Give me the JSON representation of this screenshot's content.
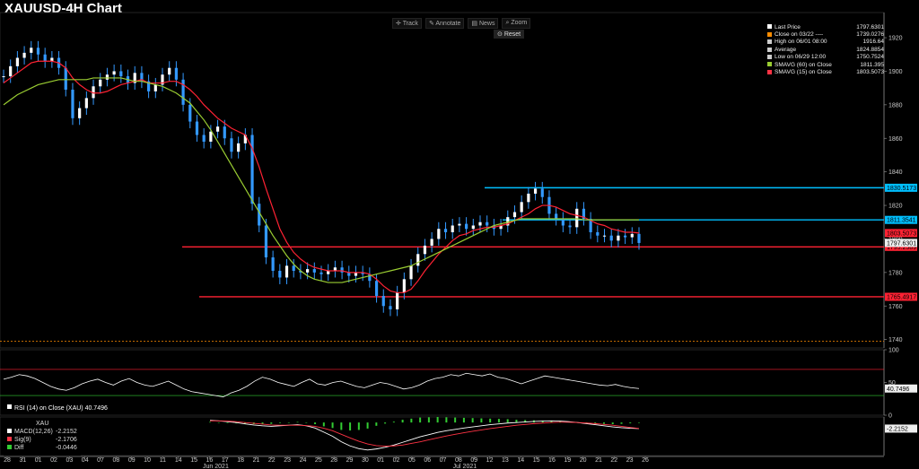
{
  "title": "XAUUSD-4H Chart",
  "toolbar": {
    "track": "Track",
    "annotate": "Annotate",
    "news": "News",
    "zoom": "Zoom",
    "reset": "Reset"
  },
  "legend": [
    {
      "label": "Last Price",
      "value": "1797.6301",
      "color": "#ffffff"
    },
    {
      "label": "Close on 03/22 ----",
      "value": "1739.0276",
      "color": "#ff8c00"
    },
    {
      "label": "High on 06/01 08:00",
      "value": "1916.64",
      "color": "#cccccc"
    },
    {
      "label": "Average",
      "value": "1824.8854",
      "color": "#cccccc"
    },
    {
      "label": "Low on 06/29 12:00",
      "value": "1750.7524",
      "color": "#cccccc"
    },
    {
      "label": "SMAVG (60)  on Close",
      "value": "1811.395",
      "color": "#9acd32"
    },
    {
      "label": "SMAVG (15)  on Close",
      "value": "1803.5073",
      "color": "#ff3344"
    }
  ],
  "chart_data": [
    {
      "type": "line",
      "title": "XAUUSD-4H Chart",
      "ylim": [
        1735,
        1935
      ],
      "y_ticks": [
        1740,
        1760,
        1780,
        1800,
        1820,
        1840,
        1860,
        1880,
        1900,
        1920
      ],
      "x_ticks": [
        "28",
        "31",
        "01",
        "02",
        "03",
        "04",
        "07",
        "08",
        "09",
        "10",
        "11",
        "14",
        "15",
        "16",
        "17",
        "18",
        "21",
        "22",
        "23",
        "24",
        "25",
        "28",
        "29",
        "30",
        "01",
        "02",
        "05",
        "06",
        "07",
        "08",
        "09",
        "12",
        "13",
        "14",
        "15",
        "16",
        "19",
        "20",
        "21",
        "22",
        "23",
        "26"
      ],
      "month_labels": [
        {
          "label": "Jun 2021",
          "at": "15"
        },
        {
          "label": "Jul 2021",
          "at": "09"
        }
      ],
      "levels": [
        {
          "value": 1830.5173,
          "label": "1830.5173",
          "color": "#00bfff"
        },
        {
          "value": 1811.3541,
          "label": "1811.3541",
          "color": "#00bfff"
        },
        {
          "value": 1795.2589,
          "label": "1795.2589",
          "color": "#ff2233"
        },
        {
          "value": 1765.4917,
          "label": "1765.4917",
          "color": "#ff2233"
        }
      ],
      "tags": [
        {
          "value": 1803.5073,
          "label": "1803.5073",
          "color": "#ff2233"
        },
        {
          "value": 1797.6301,
          "label": "1797.6301",
          "color": "#ffffff"
        }
      ],
      "series": [
        {
          "name": "Last Price",
          "color": "#3399ff",
          "values": [
            1897,
            1903,
            1908,
            1911,
            1914,
            1910,
            1906,
            1908,
            1902,
            1889,
            1872,
            1878,
            1884,
            1891,
            1895,
            1898,
            1900,
            1897,
            1893,
            1899,
            1894,
            1888,
            1892,
            1898,
            1902,
            1895,
            1880,
            1870,
            1862,
            1858,
            1864,
            1867,
            1860,
            1852,
            1857,
            1862,
            1821,
            1808,
            1789,
            1781,
            1777,
            1784,
            1781,
            1780,
            1782,
            1780,
            1779,
            1781,
            1783,
            1780,
            1778,
            1780,
            1779,
            1775,
            1766,
            1760,
            1758,
            1768,
            1776,
            1784,
            1791,
            1796,
            1800,
            1806,
            1804,
            1808,
            1809,
            1806,
            1808,
            1810,
            1808,
            1806,
            1808,
            1813,
            1816,
            1822,
            1827,
            1830,
            1825,
            1815,
            1812,
            1808,
            1807,
            1818,
            1812,
            1804,
            1802,
            1802,
            1799,
            1802,
            1801,
            1803,
            1797.6
          ]
        },
        {
          "name": "SMAVG (15)  on Close",
          "color": "#ff2233",
          "values": [
            1893,
            1896,
            1899,
            1902,
            1905,
            1906,
            1906,
            1906,
            1905,
            1902,
            1896,
            1892,
            1889,
            1887,
            1887,
            1888,
            1890,
            1892,
            1893,
            1894,
            1895,
            1893,
            1893,
            1893,
            1894,
            1894,
            1892,
            1889,
            1885,
            1880,
            1876,
            1872,
            1869,
            1866,
            1864,
            1862,
            1854,
            1843,
            1830,
            1818,
            1806,
            1798,
            1792,
            1788,
            1785,
            1783,
            1782,
            1781,
            1781,
            1781,
            1780,
            1780,
            1780,
            1779,
            1776,
            1772,
            1769,
            1768,
            1768,
            1770,
            1775,
            1781,
            1786,
            1791,
            1795,
            1799,
            1802,
            1803,
            1805,
            1806,
            1807,
            1807,
            1808,
            1809,
            1811,
            1813,
            1815,
            1818,
            1820,
            1820,
            1819,
            1817,
            1815,
            1814,
            1813,
            1811,
            1809,
            1808,
            1806,
            1805,
            1804,
            1804,
            1803.5
          ]
        },
        {
          "name": "SMAVG (60)  on Close",
          "color": "#9acd32",
          "values": [
            1880,
            1883,
            1886,
            1888,
            1890,
            1892,
            1893,
            1894,
            1895,
            1895,
            1895,
            1895,
            1895,
            1896,
            1896,
            1896,
            1896,
            1896,
            1895,
            1894,
            1894,
            1893,
            1892,
            1891,
            1889,
            1887,
            1884,
            1881,
            1876,
            1871,
            1865,
            1858,
            1851,
            1844,
            1837,
            1830,
            1823,
            1816,
            1809,
            1802,
            1796,
            1790,
            1785,
            1781,
            1778,
            1776,
            1775,
            1774,
            1774,
            1774,
            1775,
            1776,
            1777,
            1778,
            1779,
            1780,
            1781,
            1782,
            1783,
            1784,
            1786,
            1788,
            1790,
            1792,
            1794,
            1796,
            1798,
            1800,
            1802,
            1804,
            1806,
            1808,
            1809,
            1810,
            1811,
            1812,
            1812,
            1812,
            1812,
            1812,
            1812,
            1812,
            1812,
            1812,
            1811.5,
            1811.4,
            1811.4,
            1811.4,
            1811.4,
            1811.4,
            1811.4,
            1811.4,
            1811.4
          ]
        }
      ]
    },
    {
      "type": "line",
      "title": "RSI (14)  on Close (XAU) 40.7496",
      "ylim": [
        0,
        100
      ],
      "y_ticks": [
        0,
        50,
        100
      ],
      "levels": [
        {
          "value": 70,
          "color": "#ff2233"
        },
        {
          "value": 30,
          "color": "#33cc33"
        }
      ],
      "tags": [
        {
          "value": 40.7496,
          "label": "40.7496",
          "color": "#ffffff"
        }
      ],
      "series": [
        {
          "name": "RSI (14)  on Close (XAU)",
          "color": "#ffffff",
          "values": [
            55,
            58,
            62,
            60,
            56,
            50,
            44,
            40,
            38,
            42,
            48,
            52,
            55,
            50,
            46,
            52,
            56,
            50,
            46,
            44,
            48,
            52,
            46,
            40,
            36,
            34,
            32,
            30,
            28,
            34,
            38,
            44,
            52,
            58,
            55,
            50,
            47,
            44,
            50,
            55,
            48,
            46,
            50,
            52,
            48,
            44,
            42,
            46,
            50,
            48,
            44,
            40,
            42,
            46,
            52,
            56,
            58,
            62,
            60,
            64,
            62,
            60,
            63,
            58,
            56,
            52,
            48,
            52,
            56,
            60,
            58,
            56,
            54,
            52,
            50,
            48,
            46,
            45,
            47,
            44,
            42,
            40.7
          ]
        }
      ]
    },
    {
      "type": "line",
      "title": "XAU",
      "ylim": [
        -12,
        2
      ],
      "tags": [
        {
          "value": -2.2152,
          "label": "-2.2152",
          "color": "#ffffff"
        }
      ],
      "series": [
        {
          "name": "MACD(12,26)",
          "value_label": "-2.2152",
          "color": "#ffffff",
          "values": [
            0.8,
            0.6,
            0.3,
            0,
            -0.5,
            -0.9,
            -1.2,
            -1.4,
            -1.2,
            -1,
            -0.8,
            -1.2,
            -2,
            -3.5,
            -5,
            -7,
            -8.5,
            -9.5,
            -10,
            -9.6,
            -9,
            -8.2,
            -7.2,
            -6.2,
            -5.2,
            -4.4,
            -3.6,
            -3,
            -2.5,
            -2,
            -1.6,
            -1.2,
            -0.8,
            -0.5,
            -0.2,
            0,
            0.2,
            0.4,
            0.5,
            0.6,
            0.5,
            0.3,
            0,
            -0.4,
            -0.8,
            -1.2,
            -1.6,
            -1.9,
            -2.1,
            -2.2
          ]
        },
        {
          "name": "Sig(9)",
          "value_label": "-2.1706",
          "color": "#ff3344",
          "values": [
            0.6,
            0.6,
            0.5,
            0.3,
            0,
            -0.3,
            -0.6,
            -0.9,
            -1,
            -1,
            -1,
            -1.1,
            -1.4,
            -2.1,
            -3,
            -4.3,
            -5.6,
            -6.8,
            -7.8,
            -8.4,
            -8.6,
            -8.5,
            -8.2,
            -7.6,
            -7,
            -6.3,
            -5.6,
            -4.9,
            -4.3,
            -3.7,
            -3.2,
            -2.7,
            -2.2,
            -1.8,
            -1.4,
            -1,
            -0.7,
            -0.4,
            -0.2,
            0,
            0.1,
            0.1,
            0,
            -0.2,
            -0.4,
            -0.7,
            -1,
            -1.4,
            -1.8,
            -2.17
          ]
        },
        {
          "name": "Diff",
          "value_label": "-0.0446",
          "color": "#33cc33",
          "type": "bar",
          "values": [
            0.2,
            0,
            -0.2,
            -0.3,
            -0.5,
            -0.6,
            -0.6,
            -0.5,
            -0.2,
            0,
            0.2,
            -0.1,
            -0.6,
            -1.4,
            -2,
            -2.7,
            -2.9,
            -2.7,
            -2.2,
            -1.2,
            -0.4,
            0.3,
            1,
            1.4,
            1.8,
            1.9,
            2,
            1.9,
            1.8,
            1.7,
            1.6,
            1.5,
            1.4,
            1.3,
            1.2,
            1,
            0.9,
            0.8,
            0.7,
            0.6,
            0.4,
            0.2,
            0,
            -0.2,
            -0.4,
            -0.5,
            -0.6,
            -0.5,
            -0.3,
            -0.04
          ]
        }
      ]
    }
  ]
}
